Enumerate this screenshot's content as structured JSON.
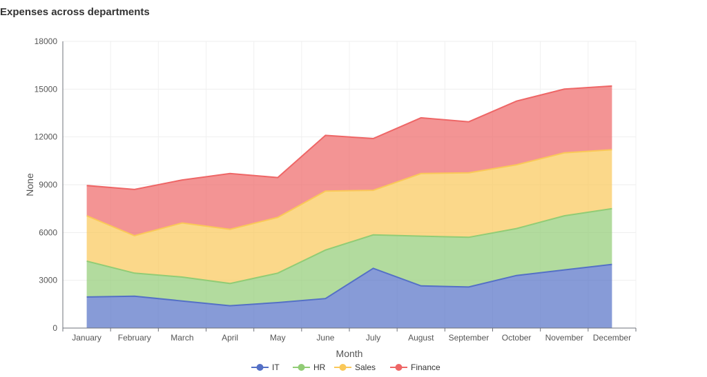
{
  "chart_data": {
    "type": "area",
    "stacked": true,
    "title": "Expenses across departments",
    "xlabel": "Month",
    "ylabel": "None",
    "ylim": [
      0,
      18000
    ],
    "yticks": [
      0,
      3000,
      6000,
      9000,
      12000,
      15000,
      18000
    ],
    "grid": true,
    "legend_position": "bottom",
    "categories": [
      "January",
      "February",
      "March",
      "April",
      "May",
      "June",
      "July",
      "August",
      "September",
      "October",
      "November",
      "December"
    ],
    "series": [
      {
        "name": "IT",
        "color": "#5470c6",
        "values": [
          1950,
          2000,
          1700,
          1400,
          1600,
          1850,
          3750,
          2650,
          2580,
          3300,
          3650,
          4000
        ]
      },
      {
        "name": "HR",
        "color": "#91cc75",
        "values": [
          2250,
          1450,
          1500,
          1400,
          1850,
          3050,
          2100,
          3120,
          3120,
          2950,
          3400,
          3500
        ]
      },
      {
        "name": "Sales",
        "color": "#fac858",
        "values": [
          2850,
          2350,
          3400,
          3400,
          3500,
          3700,
          2800,
          3930,
          4050,
          4000,
          3950,
          3700
        ]
      },
      {
        "name": "Finance",
        "color": "#ee6666",
        "values": [
          1900,
          2900,
          2700,
          3500,
          2500,
          3500,
          3250,
          3500,
          3200,
          4000,
          4000,
          4000
        ]
      }
    ]
  }
}
